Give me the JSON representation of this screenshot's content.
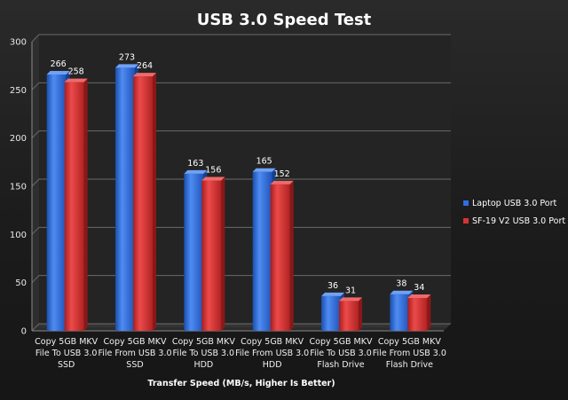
{
  "chart_data": {
    "type": "bar",
    "title": "USB 3.0 Speed Test",
    "xlabel": "Transfer Speed (MB/s, Higher Is Better)",
    "ylabel": "",
    "ylim": [
      0,
      300
    ],
    "yticks": [
      0,
      50,
      100,
      150,
      200,
      250,
      300
    ],
    "grid": true,
    "legend_position": "right",
    "categories": [
      [
        "Copy 5GB MKV",
        "File To USB 3.0",
        "SSD"
      ],
      [
        "Copy 5GB MKV",
        "File From USB 3.0",
        "SSD"
      ],
      [
        "Copy 5GB MKV",
        "File To USB 3.0",
        "HDD"
      ],
      [
        "Copy 5GB MKV",
        "File From USB 3.0",
        "HDD"
      ],
      [
        "Copy 5GB MKV",
        "File To USB 3.0",
        "Flash Drive"
      ],
      [
        "Copy 5GB MKV",
        "File From USB 3.0",
        "Flash Drive"
      ]
    ],
    "series": [
      {
        "name": "Laptop USB 3.0 Port",
        "color": "#2f6fe0",
        "values": [
          266,
          273,
          163,
          165,
          36,
          38
        ]
      },
      {
        "name": "SF-19 V2 USB 3.0 Port",
        "color": "#d63434",
        "values": [
          258,
          264,
          156,
          152,
          31,
          34
        ]
      }
    ]
  }
}
